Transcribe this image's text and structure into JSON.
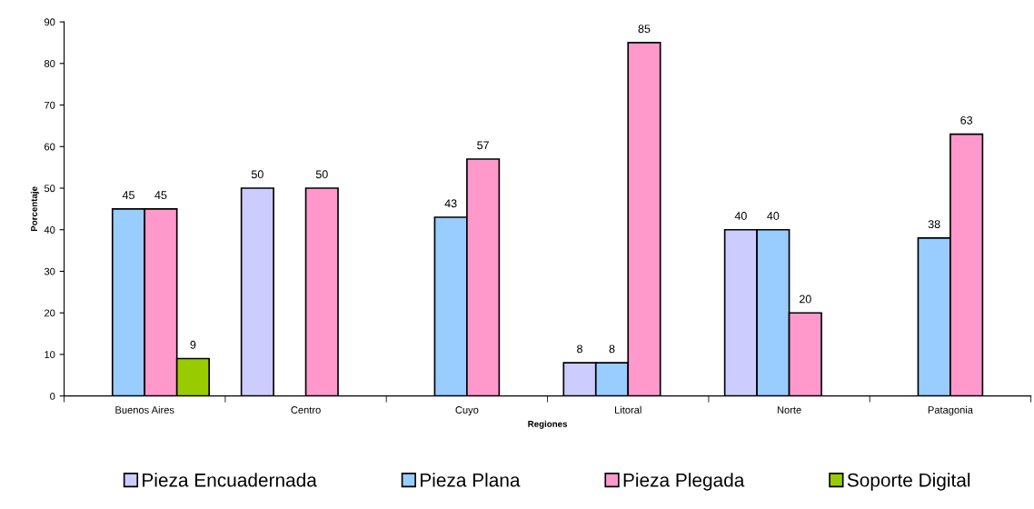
{
  "chart_data": {
    "type": "bar",
    "xlabel": "Regiones",
    "ylabel": "Porcentaje",
    "categories": [
      "Buenos Aires",
      "Centro",
      "Cuyo",
      "Litoral",
      "Norte",
      "Patagonia"
    ],
    "series": [
      {
        "name": "Pieza Encuadernada",
        "color": "#ccccff",
        "values": [
          null,
          50,
          null,
          8,
          40,
          null
        ]
      },
      {
        "name": "Pieza Plana",
        "color": "#99ccff",
        "values": [
          45,
          null,
          43,
          8,
          40,
          38
        ]
      },
      {
        "name": "Pieza Plegada",
        "color": "#ff99cc",
        "values": [
          45,
          50,
          57,
          85,
          20,
          63
        ]
      },
      {
        "name": "Soporte Digital",
        "color": "#99cc00",
        "values": [
          9,
          null,
          null,
          null,
          null,
          null
        ]
      }
    ],
    "ylim": [
      0,
      90
    ],
    "yticks": [
      0,
      10,
      20,
      30,
      40,
      50,
      60,
      70,
      80,
      90
    ],
    "grid": false,
    "legend": "bottom",
    "data_labels": true
  }
}
